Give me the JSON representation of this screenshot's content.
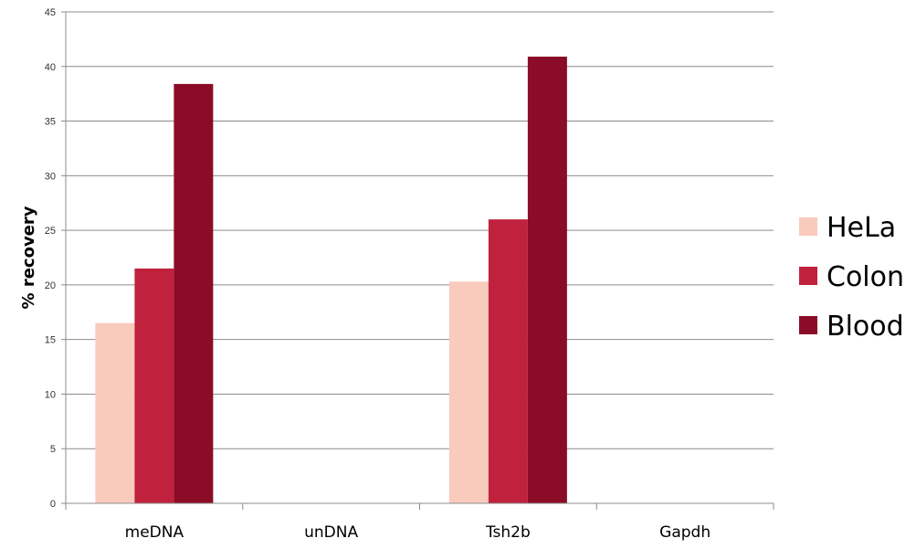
{
  "chart_data": {
    "type": "bar",
    "title": "",
    "xlabel": "",
    "ylabel": "% recovery",
    "ylim": [
      0,
      45
    ],
    "yticks": [
      0,
      5,
      10,
      15,
      20,
      25,
      30,
      35,
      40,
      45
    ],
    "grid": true,
    "legend_position": "right",
    "categories": [
      "meDNA",
      "unDNA",
      "Tsh2b",
      "Gapdh"
    ],
    "series": [
      {
        "name": "HeLa",
        "color": "#f8cbbd",
        "values": [
          16.5,
          0,
          20.3,
          0
        ]
      },
      {
        "name": "Colon",
        "color": "#c0213c",
        "values": [
          21.5,
          0,
          26.0,
          0
        ]
      },
      {
        "name": "Blood",
        "color": "#8b0c26",
        "values": [
          38.4,
          0,
          40.9,
          0
        ]
      }
    ]
  }
}
